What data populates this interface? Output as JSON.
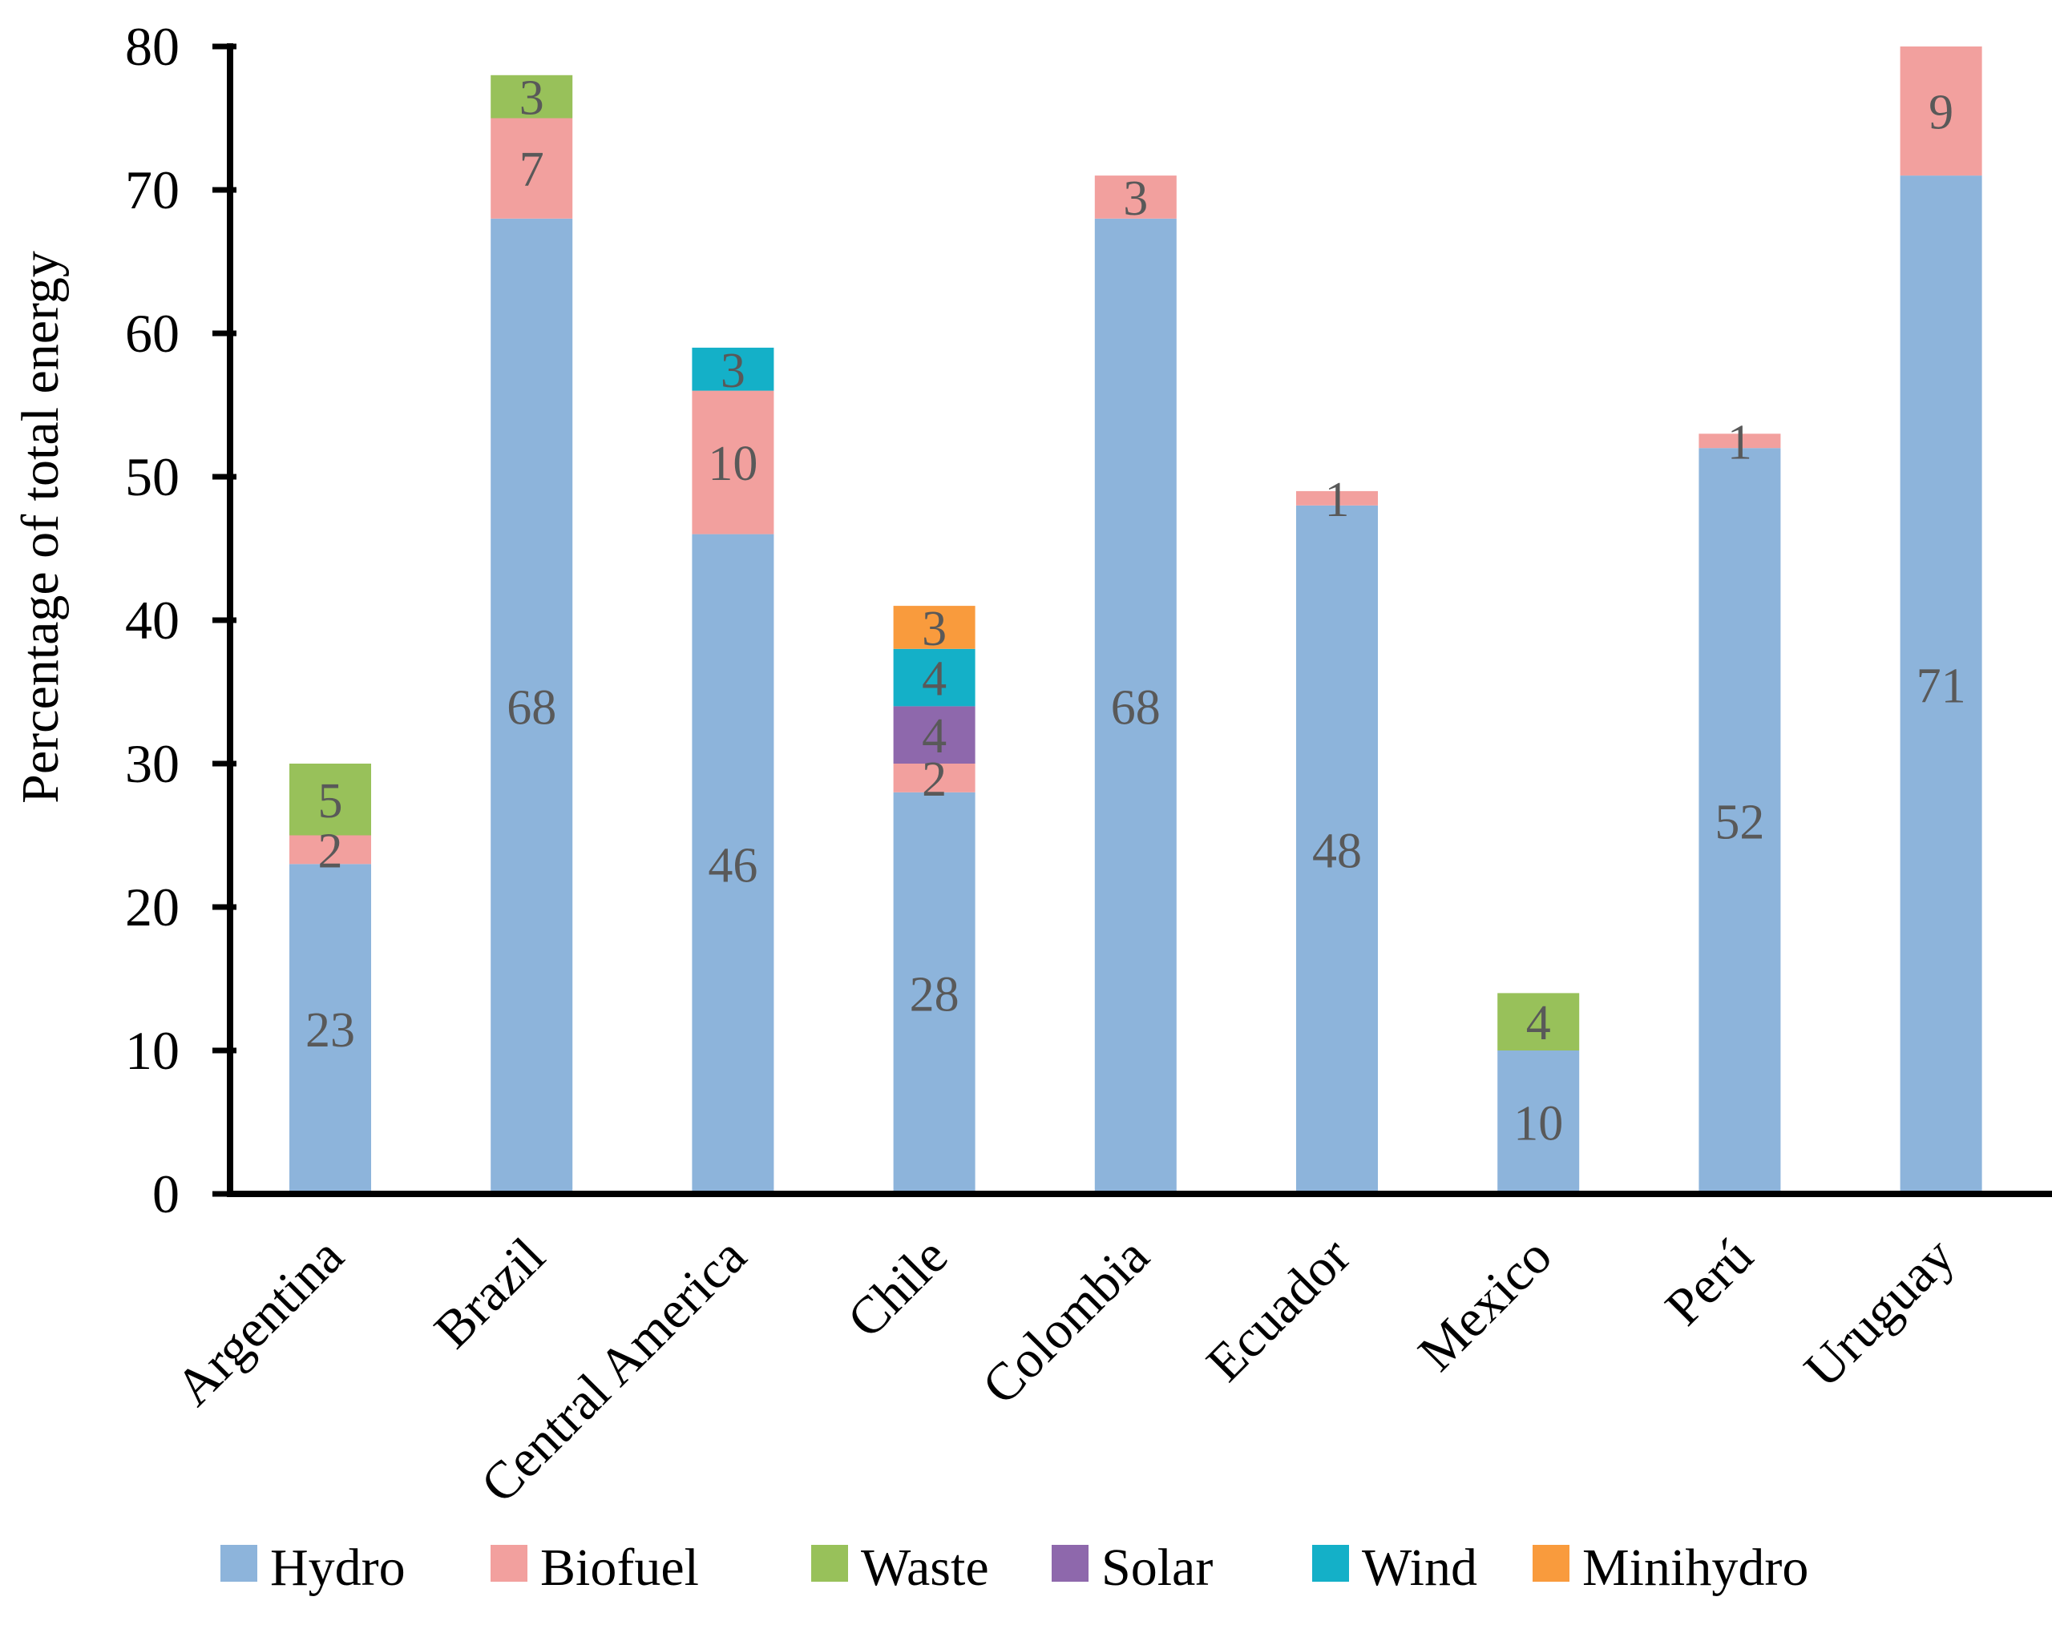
{
  "chart_data": {
    "type": "bar",
    "stacked": true,
    "title": "",
    "xlabel": "",
    "ylabel": "Percentage of total energy",
    "ylim": [
      0,
      80
    ],
    "yticks": [
      0,
      10,
      20,
      30,
      40,
      50,
      60,
      70,
      80
    ],
    "grid": false,
    "legend_position": "bottom",
    "categories": [
      "Argentina",
      "Brazil",
      "Central America",
      "Chile",
      "Colombia",
      "Ecuador",
      "Mexico",
      "Perú",
      "Uruguay"
    ],
    "series": [
      {
        "name": "Hydro",
        "color": "#8DB4DB",
        "values": [
          23,
          68,
          46,
          28,
          68,
          48,
          10,
          52,
          71
        ]
      },
      {
        "name": "Biofuel",
        "color": "#F2A09E",
        "values": [
          2,
          7,
          10,
          2,
          3,
          1,
          null,
          1,
          9
        ]
      },
      {
        "name": "Waste",
        "color": "#98C15A",
        "values": [
          5,
          3,
          null,
          null,
          null,
          null,
          4,
          null,
          null
        ]
      },
      {
        "name": "Solar",
        "color": "#8E68AC",
        "values": [
          null,
          null,
          null,
          4,
          null,
          null,
          null,
          null,
          null
        ]
      },
      {
        "name": "Wind",
        "color": "#14B0C8",
        "values": [
          null,
          null,
          3,
          4,
          null,
          null,
          null,
          null,
          null
        ]
      },
      {
        "name": "Minihydro",
        "color": "#F99B3D",
        "values": [
          null,
          null,
          null,
          3,
          null,
          null,
          null,
          null,
          null
        ]
      }
    ]
  }
}
